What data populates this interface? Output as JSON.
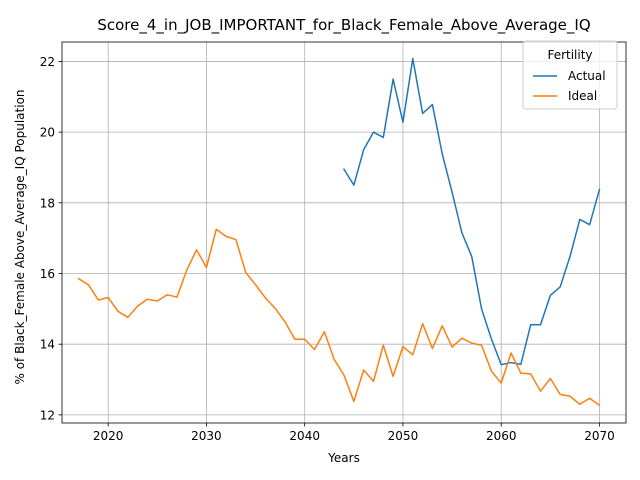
{
  "chart_data": {
    "type": "line",
    "title": "Score_4_in_JOB_IMPORTANT_for_Black_Female_Above_Average_IQ",
    "xlabel": "Years",
    "ylabel": "% of Black_Female Above_Average_IQ Population",
    "xlim": [
      2015.3,
      2072.7
    ],
    "ylim": [
      11.77,
      22.55
    ],
    "xticks": [
      2020,
      2030,
      2040,
      2050,
      2060,
      2070
    ],
    "yticks": [
      12,
      14,
      16,
      18,
      20,
      22
    ],
    "grid": true,
    "legend": {
      "title": "Fertility",
      "position": "top-right"
    },
    "series": [
      {
        "name": "Actual",
        "color": "#1f77b4",
        "x": [
          2044,
          2045,
          2046,
          2047,
          2048,
          2049,
          2050,
          2051,
          2052,
          2053,
          2054,
          2055,
          2056,
          2057,
          2058,
          2059,
          2060,
          2061,
          2062,
          2063,
          2064,
          2065,
          2066,
          2067,
          2068,
          2069,
          2070
        ],
        "y": [
          18.95,
          18.5,
          19.5,
          20.0,
          19.85,
          21.5,
          20.28,
          22.08,
          20.53,
          20.78,
          19.38,
          18.3,
          17.15,
          16.48,
          15.0,
          14.15,
          13.42,
          13.48,
          13.43,
          14.55,
          14.55,
          15.38,
          15.62,
          16.48,
          17.53,
          17.38,
          18.38
        ]
      },
      {
        "name": "Ideal",
        "color": "#ff7f0e",
        "x": [
          2017,
          2018,
          2019,
          2020,
          2021,
          2022,
          2023,
          2024,
          2025,
          2026,
          2027,
          2028,
          2029,
          2030,
          2031,
          2032,
          2033,
          2034,
          2035,
          2036,
          2037,
          2038,
          2039,
          2040,
          2041,
          2042,
          2043,
          2044,
          2045,
          2046,
          2047,
          2048,
          2049,
          2050,
          2051,
          2052,
          2053,
          2054,
          2055,
          2056,
          2057,
          2058,
          2059,
          2060,
          2061,
          2062,
          2063,
          2064,
          2065,
          2066,
          2067,
          2068,
          2069,
          2070
        ],
        "y": [
          15.85,
          15.68,
          15.25,
          15.32,
          14.93,
          14.76,
          15.08,
          15.27,
          15.22,
          15.4,
          15.33,
          16.1,
          16.67,
          16.17,
          17.25,
          17.05,
          16.96,
          16.03,
          15.68,
          15.31,
          15.01,
          14.63,
          14.14,
          14.14,
          13.85,
          14.35,
          13.57,
          13.12,
          12.38,
          13.27,
          12.95,
          13.97,
          13.09,
          13.93,
          13.7,
          14.58,
          13.88,
          14.52,
          13.92,
          14.17,
          14.03,
          13.97,
          13.24,
          12.9,
          13.75,
          13.18,
          13.16,
          12.67,
          13.03,
          12.58,
          12.53,
          12.3,
          12.47,
          12.27
        ]
      }
    ]
  }
}
